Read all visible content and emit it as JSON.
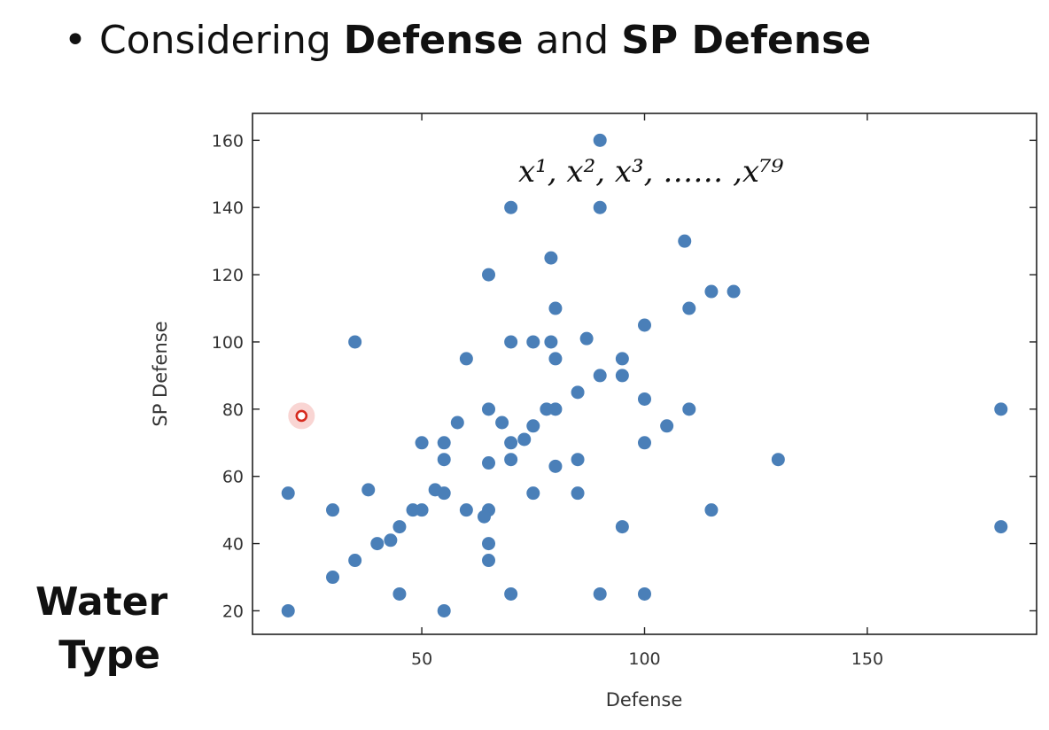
{
  "heading": {
    "bullet": "•",
    "prefix": "Considering ",
    "term1": "Defense",
    "middle": " and ",
    "term2": "SP Defense"
  },
  "side_label": {
    "line1": "Water",
    "line2": "Type"
  },
  "colors": {
    "points": "#4a7fb8",
    "highlight": "#d62a1e",
    "highlight_glow": "#f4b3ae"
  },
  "chart_data": {
    "type": "scatter",
    "title": "",
    "xlabel": "Defense",
    "ylabel": "SP Defense",
    "xlim": [
      12,
      188
    ],
    "ylim": [
      13,
      168
    ],
    "xticks": [
      50,
      100,
      150
    ],
    "yticks": [
      20,
      40,
      60,
      80,
      100,
      120,
      140,
      160
    ],
    "grid": false,
    "annotation": "x¹, x², x³, …… ,x⁷⁹",
    "highlight_point": {
      "x": 23,
      "y": 78
    },
    "points": [
      {
        "x": 90,
        "y": 160
      },
      {
        "x": 70,
        "y": 140
      },
      {
        "x": 90,
        "y": 140
      },
      {
        "x": 109,
        "y": 130
      },
      {
        "x": 79,
        "y": 125
      },
      {
        "x": 65,
        "y": 120
      },
      {
        "x": 115,
        "y": 115
      },
      {
        "x": 120,
        "y": 115
      },
      {
        "x": 80,
        "y": 110
      },
      {
        "x": 110,
        "y": 110
      },
      {
        "x": 100,
        "y": 105
      },
      {
        "x": 87,
        "y": 101
      },
      {
        "x": 35,
        "y": 100
      },
      {
        "x": 70,
        "y": 100
      },
      {
        "x": 75,
        "y": 100
      },
      {
        "x": 79,
        "y": 100
      },
      {
        "x": 60,
        "y": 95
      },
      {
        "x": 80,
        "y": 95
      },
      {
        "x": 95,
        "y": 95
      },
      {
        "x": 90,
        "y": 90
      },
      {
        "x": 95,
        "y": 90
      },
      {
        "x": 85,
        "y": 85
      },
      {
        "x": 100,
        "y": 83
      },
      {
        "x": 65,
        "y": 80
      },
      {
        "x": 78,
        "y": 80
      },
      {
        "x": 80,
        "y": 80
      },
      {
        "x": 110,
        "y": 80
      },
      {
        "x": 180,
        "y": 80
      },
      {
        "x": 58,
        "y": 76
      },
      {
        "x": 68,
        "y": 76
      },
      {
        "x": 75,
        "y": 75
      },
      {
        "x": 105,
        "y": 75
      },
      {
        "x": 50,
        "y": 70
      },
      {
        "x": 55,
        "y": 70
      },
      {
        "x": 70,
        "y": 70
      },
      {
        "x": 73,
        "y": 71
      },
      {
        "x": 100,
        "y": 70
      },
      {
        "x": 55,
        "y": 65
      },
      {
        "x": 70,
        "y": 65
      },
      {
        "x": 85,
        "y": 65
      },
      {
        "x": 130,
        "y": 65
      },
      {
        "x": 65,
        "y": 64
      },
      {
        "x": 80,
        "y": 63
      },
      {
        "x": 38,
        "y": 56
      },
      {
        "x": 53,
        "y": 56
      },
      {
        "x": 20,
        "y": 55
      },
      {
        "x": 55,
        "y": 55
      },
      {
        "x": 75,
        "y": 55
      },
      {
        "x": 85,
        "y": 55
      },
      {
        "x": 30,
        "y": 50
      },
      {
        "x": 48,
        "y": 50
      },
      {
        "x": 50,
        "y": 50
      },
      {
        "x": 60,
        "y": 50
      },
      {
        "x": 65,
        "y": 50
      },
      {
        "x": 115,
        "y": 50
      },
      {
        "x": 64,
        "y": 48
      },
      {
        "x": 45,
        "y": 45
      },
      {
        "x": 95,
        "y": 45
      },
      {
        "x": 180,
        "y": 45
      },
      {
        "x": 43,
        "y": 41
      },
      {
        "x": 40,
        "y": 40
      },
      {
        "x": 65,
        "y": 40
      },
      {
        "x": 35,
        "y": 35
      },
      {
        "x": 65,
        "y": 35
      },
      {
        "x": 30,
        "y": 30
      },
      {
        "x": 45,
        "y": 25
      },
      {
        "x": 70,
        "y": 25
      },
      {
        "x": 90,
        "y": 25
      },
      {
        "x": 100,
        "y": 25
      },
      {
        "x": 20,
        "y": 20
      },
      {
        "x": 55,
        "y": 20
      }
    ]
  }
}
